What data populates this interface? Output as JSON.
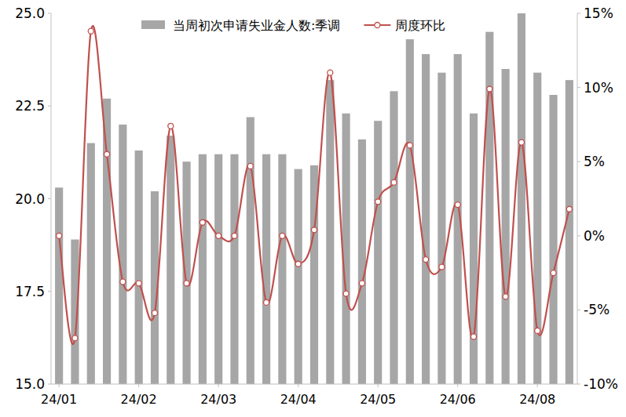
{
  "chart_data": {
    "type": "bar",
    "categories": [
      "24/01",
      null,
      null,
      null,
      null,
      "24/02",
      null,
      null,
      null,
      null,
      "24/03",
      null,
      null,
      null,
      null,
      "24/04",
      null,
      null,
      null,
      null,
      "24/05",
      null,
      null,
      null,
      null,
      "24/06",
      null,
      null,
      null,
      null,
      "24/08",
      null,
      null
    ],
    "series": [
      {
        "name": "当周初次申请失业金人数:季调",
        "type": "bar",
        "color": "#a6a6a6",
        "values": [
          20.3,
          18.9,
          21.5,
          22.7,
          22.0,
          21.3,
          20.2,
          21.7,
          21.0,
          21.2,
          21.2,
          21.2,
          22.2,
          21.2,
          21.2,
          20.8,
          20.9,
          23.2,
          22.3,
          21.6,
          22.1,
          22.9,
          24.3,
          23.9,
          23.4,
          23.9,
          22.3,
          24.5,
          23.5,
          25.0,
          23.4,
          22.8,
          23.2
        ]
      },
      {
        "name": "周度环比",
        "type": "line",
        "color": "#c0504d",
        "marker": "circle",
        "axis": "y2",
        "values": [
          0.0,
          -6.9,
          13.8,
          5.5,
          -3.1,
          -3.2,
          -5.2,
          7.4,
          -3.2,
          0.9,
          0.0,
          0.0,
          4.7,
          -4.5,
          0.0,
          -1.9,
          0.4,
          11.0,
          -3.9,
          -3.2,
          2.3,
          3.6,
          6.1,
          -1.6,
          -2.1,
          2.1,
          -6.8,
          9.9,
          -4.1,
          6.3,
          -6.4,
          -2.5,
          1.8
        ]
      }
    ],
    "ylim": [
      15,
      25
    ],
    "yticks": [
      {
        "value": 15,
        "label": "15.0"
      },
      17.5,
      {
        "value": 20,
        "label": "20.0"
      },
      22.5,
      {
        "value": 25,
        "label": "25.0"
      }
    ],
    "y2lim": [
      -10,
      15
    ],
    "y2ticks": [
      {
        "value": -10,
        "label": "-10%"
      },
      {
        "value": -5,
        "label": "-5%"
      },
      {
        "value": 0,
        "label": "0%"
      },
      {
        "value": 5,
        "label": "5%"
      },
      {
        "value": 10,
        "label": "10%"
      },
      {
        "value": 15,
        "label": "15%"
      }
    ],
    "grid": false,
    "legend": "top"
  }
}
